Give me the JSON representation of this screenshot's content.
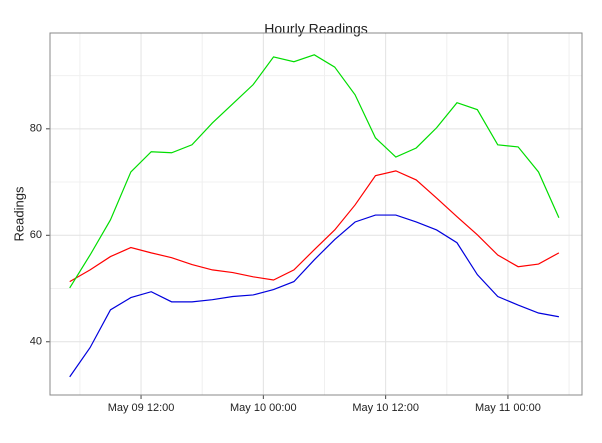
{
  "chart_data": {
    "type": "line",
    "title": "Hourly Readings",
    "ylabel": "Readings",
    "x": [
      "May 09 05:00",
      "May 09 07:00",
      "May 09 09:00",
      "May 09 11:00",
      "May 09 13:00",
      "May 09 15:00",
      "May 09 17:00",
      "May 09 19:00",
      "May 09 21:00",
      "May 09 23:00",
      "May 10 01:00",
      "May 10 03:00",
      "May 10 05:00",
      "May 10 07:00",
      "May 10 09:00",
      "May 10 11:00",
      "May 10 13:00",
      "May 10 15:00",
      "May 10 17:00",
      "May 10 19:00",
      "May 10 21:00",
      "May 10 23:00",
      "May 11 01:00",
      "May 11 03:00",
      "May 11 05:00"
    ],
    "series": [
      {
        "color": "#ff0000",
        "values": [
          51.3,
          53.5,
          56,
          57.7,
          56.7,
          55.8,
          54.5,
          53.5,
          53,
          52.2,
          51.6,
          53.5,
          57.3,
          61,
          65.7,
          71.2,
          72.1,
          70.4,
          67,
          63.5,
          60.1,
          56.3,
          54.1,
          54.6,
          56.7
        ]
      },
      {
        "color": "#00dd00",
        "values": [
          50.1,
          56.3,
          62.9,
          71.9,
          75.7,
          75.5,
          77,
          81.1,
          84.7,
          88.3,
          93.5,
          92.6,
          93.9,
          91.6,
          86.4,
          78.3,
          74.7,
          76.4,
          80.2,
          84.9,
          83.6,
          77,
          76.6,
          71.9,
          63.3
        ]
      },
      {
        "color": "#0000dd",
        "values": [
          33.4,
          38.9,
          46,
          48.3,
          49.4,
          47.5,
          47.5,
          47.9,
          48.5,
          48.8,
          49.8,
          51.3,
          55.4,
          59.2,
          62.5,
          63.8,
          63.8,
          62.5,
          61,
          58.6,
          52.6,
          48.5,
          46.9,
          45.4,
          44.7
        ]
      }
    ],
    "xlim": [
      "May 09 03:04",
      "May 11 07:16"
    ],
    "xticks": [
      "May 09 12:00",
      "May 10 00:00",
      "May 10 12:00",
      "May 11 00:00"
    ],
    "minor_xticks": [
      "May 09 06:00",
      "May 09 18:00",
      "May 10 06:00",
      "May 10 18:00",
      "May 11 06:00"
    ],
    "ylim": [
      30,
      98
    ],
    "yticks": [
      40,
      60,
      80
    ],
    "minor_yticks": [
      50,
      70,
      90
    ],
    "grid": true
  }
}
